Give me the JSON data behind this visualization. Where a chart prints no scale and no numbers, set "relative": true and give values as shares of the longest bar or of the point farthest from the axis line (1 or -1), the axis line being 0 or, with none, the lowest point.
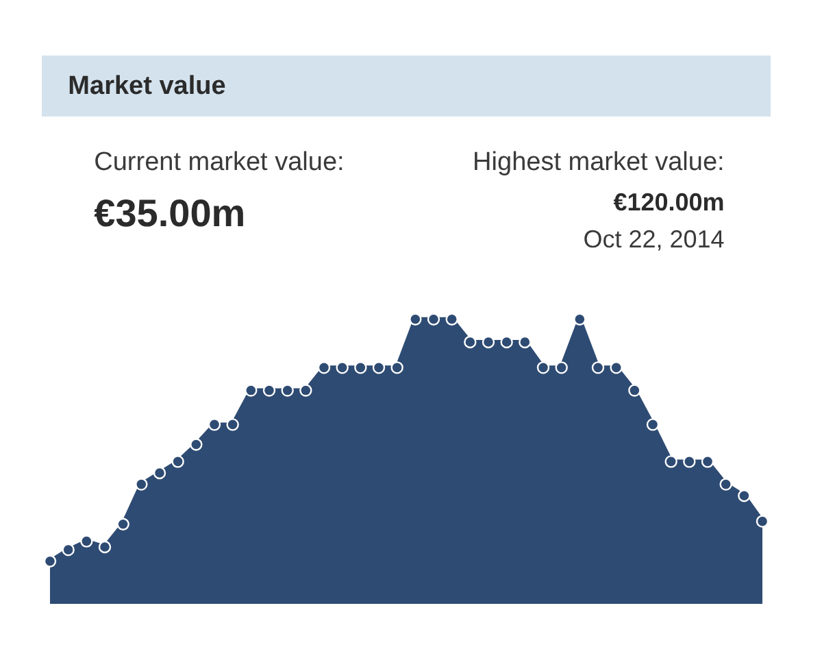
{
  "chart_data": {
    "type": "area",
    "title": "Market value",
    "annotations": [
      "Current market value:",
      "€35.00m",
      "Highest market value:",
      "€120.00m",
      "Oct 22, 2014"
    ],
    "categories": [
      null,
      null,
      null,
      null,
      null,
      null,
      null,
      null,
      null,
      null,
      null,
      null,
      null,
      null,
      null,
      null,
      null,
      null,
      null,
      null,
      null,
      null,
      null,
      null,
      null,
      null,
      null,
      null,
      null,
      null,
      null,
      null,
      null,
      null,
      null,
      null,
      null,
      null,
      null,
      null
    ],
    "relative": true,
    "series": [
      {
        "color": "#2e4b73",
        "values": [
          0.15,
          0.19,
          0.22,
          0.2,
          0.28,
          0.42,
          0.46,
          0.5,
          0.56,
          0.63,
          0.63,
          0.75,
          0.75,
          0.75,
          0.75,
          0.83,
          0.83,
          0.83,
          0.83,
          0.83,
          1,
          1,
          1,
          0.92,
          0.92,
          0.92,
          0.92,
          0.83,
          0.83,
          1,
          0.83,
          0.83,
          0.75,
          0.63,
          0.5,
          0.5,
          0.5,
          0.42,
          0.38,
          0.29
        ]
      }
    ],
    "marker": "circle",
    "line_style": "solid",
    "grid": false,
    "tick_labels": false
  }
}
